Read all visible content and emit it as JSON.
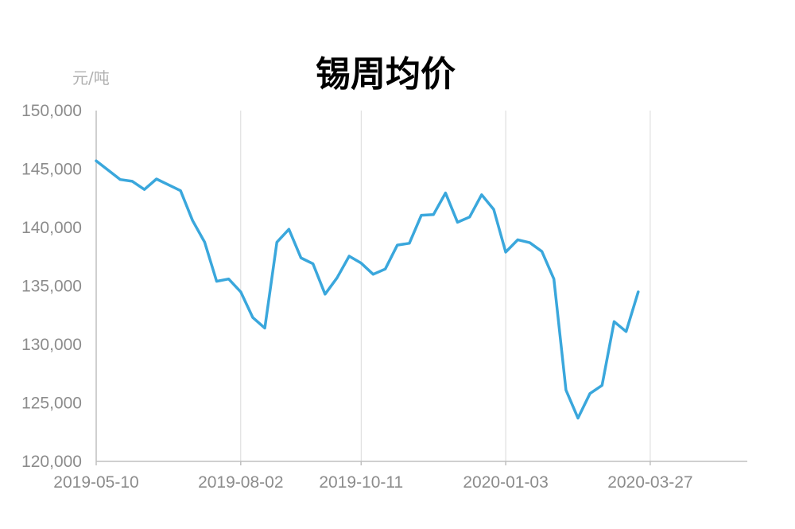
{
  "chart_data": {
    "type": "line",
    "title": "锡周均价",
    "ylabel": "元/吨",
    "xlabel": "",
    "ylim": [
      120000,
      150000
    ],
    "yticks": [
      120000,
      125000,
      130000,
      135000,
      140000,
      145000,
      150000
    ],
    "ytick_labels": [
      "120,000",
      "125,000",
      "130,000",
      "135,000",
      "140,000",
      "145,000",
      "150,000"
    ],
    "xtick_labels": [
      "2019-05-10",
      "2019-08-02",
      "2019-10-11",
      "2020-01-03",
      "2020-03-27"
    ],
    "xtick_indices": [
      0,
      12,
      22,
      34,
      46
    ],
    "grid": "vertical",
    "color": "#3aa7dc",
    "series": [
      {
        "values": [
          145700,
          144900,
          144100,
          143950,
          143250,
          144150,
          143650,
          143150,
          140600,
          138750,
          135400,
          135600,
          134500,
          132300,
          131400,
          138750,
          139850,
          137400,
          136900,
          134300,
          135700,
          137550,
          136950,
          136000,
          136450,
          138500,
          138650,
          141050,
          141100,
          142950,
          140450,
          140900,
          142800,
          141550,
          137900,
          138950,
          138700,
          137950,
          135600,
          126100,
          123700,
          125800,
          126500,
          131950,
          131100,
          134500
        ]
      }
    ]
  }
}
